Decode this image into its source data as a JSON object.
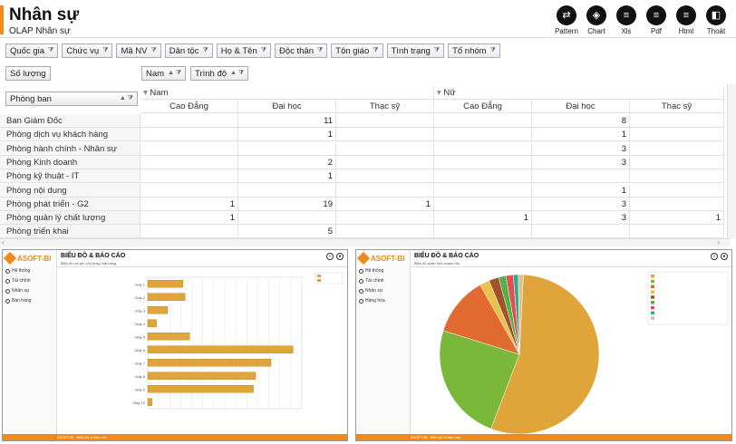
{
  "header": {
    "title": "Nhân sự",
    "subtitle": "OLAP Nhân sự",
    "tools": [
      {
        "label": "Pattern",
        "icon": "pattern-icon",
        "glyph": "⇄"
      },
      {
        "label": "Chart",
        "icon": "chart-layers-icon",
        "glyph": "◈"
      },
      {
        "label": "Xls",
        "icon": "xls-list-icon",
        "glyph": "≡"
      },
      {
        "label": "Pdf",
        "icon": "pdf-list-icon",
        "glyph": "≡"
      },
      {
        "label": "Html",
        "icon": "html-list-icon",
        "glyph": "≡"
      },
      {
        "label": "Thoát",
        "icon": "exit-book-icon",
        "glyph": "◧"
      }
    ]
  },
  "filters": [
    "Quốc gia",
    "Chức vụ",
    "Mã NV",
    "Dân tộc",
    "Họ & Tên",
    "Độc thân",
    "Tôn giáo",
    "Tình trạng",
    "Tổ nhóm"
  ],
  "pivot": {
    "measure": "Số lượng",
    "column_fields": [
      "Nam",
      "Trình độ"
    ],
    "row_field": "Phòng ban",
    "col_groups": [
      "Nam",
      "Nữ"
    ],
    "sub_cols": [
      "Cao Đẳng",
      "Đại học",
      "Thạc sỹ",
      "Cao Đẳng",
      "Đại học",
      "Thạc sỹ"
    ],
    "rows": [
      {
        "label": "Ban Giám Đốc",
        "values": [
          "",
          "11",
          "",
          "",
          "8",
          ""
        ]
      },
      {
        "label": "Phòng dịch vụ khách hàng",
        "values": [
          "",
          "1",
          "",
          "",
          "1",
          ""
        ]
      },
      {
        "label": "Phòng hành chính - Nhân sự",
        "values": [
          "",
          "",
          "",
          "",
          "3",
          ""
        ]
      },
      {
        "label": "Phòng Kinh doanh",
        "values": [
          "",
          "2",
          "",
          "",
          "3",
          ""
        ]
      },
      {
        "label": "Phòng kỹ thuật - IT",
        "values": [
          "",
          "1",
          "",
          "",
          "",
          ""
        ]
      },
      {
        "label": "Phòng nội dung",
        "values": [
          "",
          "",
          "",
          "",
          "1",
          ""
        ]
      },
      {
        "label": "Phòng phát triển - G2",
        "values": [
          "1",
          "19",
          "1",
          "",
          "3",
          ""
        ]
      },
      {
        "label": "Phòng quản lý chất lượng",
        "values": [
          "1",
          "",
          "",
          "1",
          "3",
          "1"
        ]
      },
      {
        "label": "Phòng triển khai",
        "values": [
          "",
          "5",
          "",
          "",
          "",
          ""
        ]
      }
    ]
  },
  "left_panel": {
    "logo": "ASOFT-BI",
    "title": "BIỂU ĐỒ & BÁO CÁO",
    "subtitle": "Biểu đồ chi phí cho từng mặt hàng",
    "menu": [
      "Hệ thống",
      "Tài chính",
      "Nhân sự",
      "Bán hàng"
    ],
    "footer": "ASOFT-BI · Biểu đồ & Báo cáo"
  },
  "right_panel": {
    "logo": "ASOFT-BI",
    "title": "BIỂU ĐỒ & BÁO CÁO",
    "subtitle": "Biểu đồ phân tích doanh thu",
    "menu": [
      "Hệ thống",
      "Tài chính",
      "Nhân sự",
      "Hàng hóa"
    ],
    "footer": "ASOFT-BI · Biểu đồ & Báo cáo"
  },
  "chart_data": [
    {
      "type": "bar",
      "title": "",
      "categories": [
        "Giấy 1",
        "Giấy 2",
        "Giấy 3",
        "Giấy 4",
        "Giấy 5",
        "Giấy 6",
        "Giấy 7",
        "Giấy 8",
        "Giấy 9",
        "Giấy 10"
      ],
      "series": [
        {
          "values": [
            1.6,
            1.7,
            0.9,
            0.4,
            1.9,
            6.6,
            5.6,
            4.9,
            4.8,
            0.2
          ]
        }
      ],
      "colors": {
        "bar": "#e0a53a",
        "legend2": "#c9a070"
      }
    },
    {
      "type": "pie",
      "title": "",
      "values": [
        55,
        24,
        12,
        2,
        2,
        1.5,
        1.5,
        1,
        1
      ],
      "colors": [
        "#e0a53a",
        "#7ab83a",
        "#e06a30",
        "#e8c24a",
        "#a0522d",
        "#55b046",
        "#e05050",
        "#2ea890",
        "#d8c090"
      ]
    }
  ]
}
